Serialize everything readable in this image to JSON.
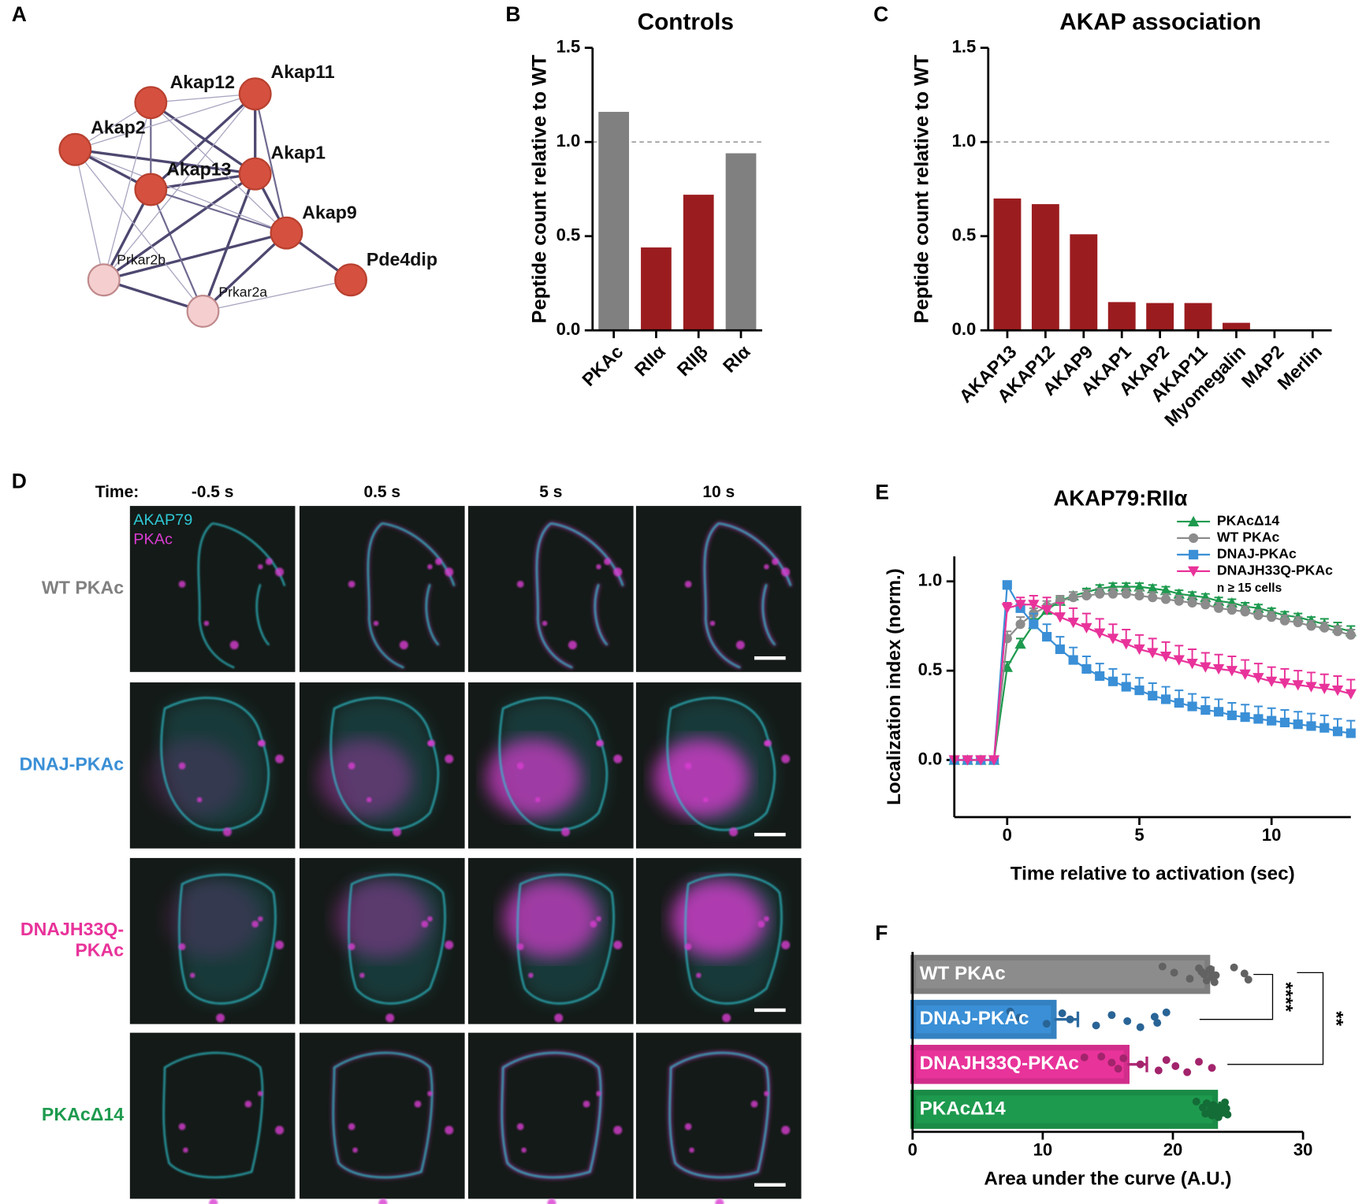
{
  "panel_labels": [
    "A",
    "B",
    "C",
    "D",
    "E",
    "F"
  ],
  "network": {
    "nodes": [
      {
        "label": "Akap12",
        "color": "#d5503f"
      },
      {
        "label": "Akap11",
        "color": "#d5503f"
      },
      {
        "label": "Akap2",
        "color": "#d5503f"
      },
      {
        "label": "Akap13",
        "color": "#d5503f"
      },
      {
        "label": "Akap1",
        "color": "#d5503f"
      },
      {
        "label": "Akap9",
        "color": "#d5503f"
      },
      {
        "label": "Prkar2b",
        "color": "#f5cfd0"
      },
      {
        "label": "Prkar2a",
        "color": "#f5cfd0"
      },
      {
        "label": "Pde4dip",
        "color": "#d5503f"
      }
    ]
  },
  "microscopy": {
    "time_label": "Time:",
    "times": [
      "-0.5 s",
      "0.5 s",
      "5 s",
      "10 s"
    ],
    "channels": [
      {
        "label": "AKAP79",
        "color": "#2ec8d4"
      },
      {
        "label": "PKAc",
        "color": "#d93cd2"
      }
    ],
    "rows": [
      {
        "label": [
          "WT PKAc"
        ],
        "color": "#808080"
      },
      {
        "label": [
          "DNAJ-PKAc"
        ],
        "color": "#3a8fd6"
      },
      {
        "label": [
          "DNAJH33Q-",
          "PKAc"
        ],
        "color": "#e8339a"
      },
      {
        "label": [
          "PKAcΔ14"
        ],
        "color": "#1d9a4e"
      }
    ]
  },
  "chart_data": [
    {
      "type": "bar",
      "title": "Controls",
      "y_label": "Peptide count relative to WT",
      "categories": [
        "PKAc",
        "RIIα",
        "RIIβ",
        "RIα"
      ],
      "values": [
        1.16,
        0.44,
        0.72,
        0.94
      ],
      "colors": [
        "#808080",
        "#9b1c1f",
        "#9b1c1f",
        "#808080"
      ],
      "ylim": [
        0,
        1.5
      ],
      "yticks": [
        {
          "value": 0,
          "label": "0.0"
        },
        {
          "value": 0.5,
          "label": "0.5"
        },
        {
          "value": 1,
          "label": "1.0"
        },
        {
          "value": 1.5,
          "label": "1.5"
        }
      ],
      "reference_line": 1
    },
    {
      "type": "bar",
      "title": "AKAP association",
      "y_label": "Peptide count relative to WT",
      "categories": [
        "AKAP13",
        "AKAP12",
        "AKAP9",
        "AKAP1",
        "AKAP2",
        "AKAP11",
        "Myomegalin",
        "MAP2",
        "Merlin"
      ],
      "values": [
        0.7,
        0.67,
        0.51,
        0.15,
        0.145,
        0.145,
        0.04,
        0,
        0
      ],
      "colors": [
        "#9b1c1f",
        "#9b1c1f",
        "#9b1c1f",
        "#9b1c1f",
        "#9b1c1f",
        "#9b1c1f",
        "#9b1c1f",
        "#9b1c1f",
        "#9b1c1f"
      ],
      "ylim": [
        0,
        1.5
      ],
      "yticks": [
        {
          "value": 0,
          "label": "0.0"
        },
        {
          "value": 0.5,
          "label": "0.5"
        },
        {
          "value": 1,
          "label": "1.0"
        },
        {
          "value": 1.5,
          "label": "1.5"
        }
      ],
      "reference_line": 1
    },
    {
      "type": "line",
      "title": "AKAP79:RIIα",
      "x_label": "Time relative to activation (sec)",
      "y_label": "Localization index (norm.)",
      "x": [
        -2,
        -1.5,
        -1,
        -0.5,
        0,
        0.5,
        1,
        1.5,
        2,
        2.5,
        3,
        3.5,
        4,
        4.5,
        5,
        5.5,
        6,
        6.5,
        7,
        7.5,
        8,
        8.5,
        9,
        9.5,
        10,
        10.5,
        11,
        11.5,
        12,
        12.5,
        13
      ],
      "series": [
        {
          "name": "PKAcΔ14",
          "color": "#1d9a4e",
          "marker": "triangle",
          "values": [
            0,
            0,
            0,
            0,
            0.52,
            0.65,
            0.76,
            0.84,
            0.89,
            0.92,
            0.94,
            0.96,
            0.97,
            0.97,
            0.97,
            0.96,
            0.95,
            0.93,
            0.92,
            0.91,
            0.89,
            0.88,
            0.86,
            0.85,
            0.83,
            0.81,
            0.8,
            0.78,
            0.76,
            0.74,
            0.72
          ],
          "errors": [
            0,
            0,
            0,
            0,
            0.03,
            0.03,
            0.03,
            0.02,
            0.02,
            0.02,
            0.02,
            0.02,
            0.02,
            0.02,
            0.02,
            0.02,
            0.02,
            0.02,
            0.02,
            0.02,
            0.02,
            0.02,
            0.02,
            0.02,
            0.02,
            0.02,
            0.02,
            0.02,
            0.03,
            0.03,
            0.03
          ]
        },
        {
          "name": "WT PKAc",
          "color": "#8c8c8c",
          "marker": "circle",
          "values": [
            0,
            0,
            0,
            0,
            0.68,
            0.76,
            0.82,
            0.86,
            0.89,
            0.91,
            0.92,
            0.93,
            0.93,
            0.93,
            0.92,
            0.91,
            0.9,
            0.89,
            0.88,
            0.87,
            0.85,
            0.84,
            0.83,
            0.81,
            0.8,
            0.78,
            0.77,
            0.75,
            0.74,
            0.72,
            0.7
          ],
          "errors": [
            0,
            0,
            0,
            0,
            0.04,
            0.04,
            0.03,
            0.03,
            0.03,
            0.03,
            0.03,
            0.03,
            0.03,
            0.03,
            0.03,
            0.03,
            0.03,
            0.03,
            0.03,
            0.03,
            0.03,
            0.03,
            0.03,
            0.03,
            0.03,
            0.03,
            0.03,
            0.03,
            0.03,
            0.03,
            0.03
          ]
        },
        {
          "name": "DNAJ-PKAc",
          "color": "#3a8fd6",
          "marker": "square",
          "values": [
            0,
            0,
            0,
            0,
            0.98,
            0.85,
            0.76,
            0.69,
            0.62,
            0.56,
            0.51,
            0.47,
            0.44,
            0.41,
            0.39,
            0.36,
            0.34,
            0.32,
            0.3,
            0.28,
            0.27,
            0.25,
            0.24,
            0.23,
            0.22,
            0.21,
            0.2,
            0.19,
            0.18,
            0.16,
            0.15
          ],
          "errors": [
            0,
            0,
            0,
            0,
            0.02,
            0.04,
            0.06,
            0.07,
            0.07,
            0.07,
            0.07,
            0.07,
            0.07,
            0.07,
            0.07,
            0.07,
            0.07,
            0.07,
            0.07,
            0.07,
            0.07,
            0.07,
            0.07,
            0.07,
            0.07,
            0.07,
            0.07,
            0.07,
            0.07,
            0.07,
            0.07
          ]
        },
        {
          "name": "DNAJH33Q-PKAc",
          "color": "#e8339a",
          "marker": "triangle-down",
          "values": [
            0,
            0,
            0,
            0,
            0.85,
            0.87,
            0.87,
            0.84,
            0.8,
            0.77,
            0.74,
            0.71,
            0.68,
            0.65,
            0.62,
            0.6,
            0.58,
            0.56,
            0.54,
            0.52,
            0.51,
            0.5,
            0.48,
            0.46,
            0.44,
            0.43,
            0.42,
            0.41,
            0.4,
            0.39,
            0.37
          ],
          "errors": [
            0,
            0,
            0,
            0,
            0.03,
            0.04,
            0.05,
            0.07,
            0.08,
            0.08,
            0.08,
            0.08,
            0.08,
            0.08,
            0.08,
            0.08,
            0.08,
            0.08,
            0.08,
            0.08,
            0.08,
            0.08,
            0.08,
            0.08,
            0.08,
            0.08,
            0.08,
            0.08,
            0.08,
            0.08,
            0.08
          ]
        }
      ],
      "annotation": "n ≥ 15 cells",
      "xlim": [
        -2,
        13
      ],
      "xticks": [
        0,
        5,
        10
      ],
      "ylim": [
        -0.32,
        1.14
      ],
      "yticks": [
        {
          "value": 0,
          "label": "0.0"
        },
        {
          "value": 0.5,
          "label": "0.5"
        },
        {
          "value": 1,
          "label": "1.0"
        }
      ]
    },
    {
      "type": "hbar",
      "x_label": "Area under the curve (A.U.)",
      "categories": [
        "WT PKAc",
        "DNAJ-PKAc",
        "DNAJH33Q-PKAc",
        "PKAcΔ14"
      ],
      "values": [
        22.7,
        10.9,
        16.5,
        23.3
      ],
      "errors": [
        0.4,
        1.8,
        1.5,
        0.3
      ],
      "colors": [
        "#8c8c8c",
        "#3a8fd6",
        "#e8339a",
        "#1d9a4e"
      ],
      "points": [
        [
          19.2,
          20.1,
          21.3,
          22.0,
          22.4,
          22.6,
          22.8,
          23.0,
          23.2,
          22.2,
          23.1,
          24.7,
          25.5,
          25.8,
          22.9,
          23.3
        ],
        [
          7.5,
          8.2,
          10.3,
          11.5,
          12.1,
          14.1,
          15.3,
          16.5,
          17.5,
          18.6,
          18.8,
          19.5
        ],
        [
          14.5,
          15.3,
          15.8,
          16.2,
          17.5,
          18.9,
          19.5,
          20.2,
          21.1,
          22.0,
          23.0,
          13.2
        ],
        [
          21.8,
          22.3,
          22.5,
          22.6,
          22.9,
          23.0,
          23.1,
          23.3,
          23.5,
          23.6,
          23.8,
          24.0,
          24.1,
          24.2
        ]
      ],
      "xlim": [
        0,
        30
      ],
      "xticks": [
        0,
        10,
        20,
        30
      ],
      "significance": [
        "****",
        "**"
      ]
    }
  ]
}
